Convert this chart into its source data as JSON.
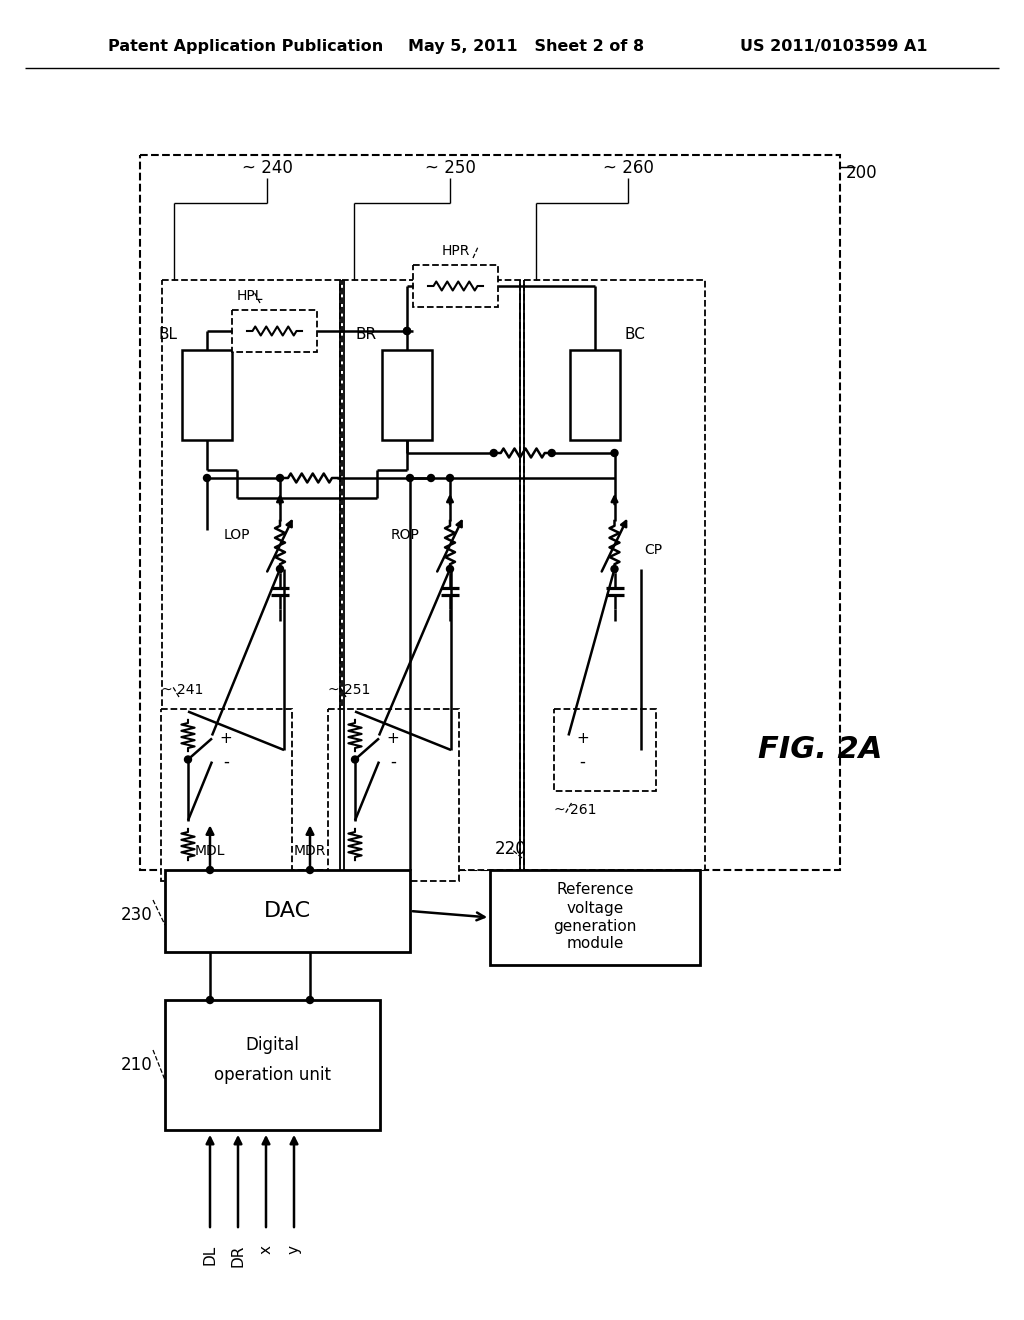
{
  "bg": "#ffffff",
  "lc": "#000000",
  "header_left": "Patent Application Publication",
  "header_mid": "May 5, 2011   Sheet 2 of 8",
  "header_right": "US 2011/0103599 A1",
  "fig_label": "FIG. 2A"
}
